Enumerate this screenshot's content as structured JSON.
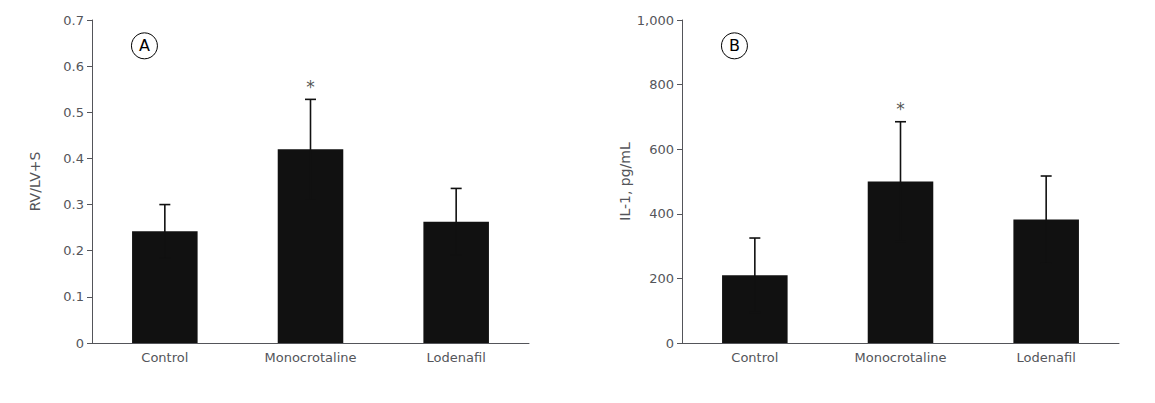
{
  "chart_data": [
    {
      "type": "bar",
      "categories": [
        "Control",
        "Monocrotaline",
        "Lodenafil"
      ],
      "values": [
        0.242,
        0.42,
        0.263
      ],
      "errors": [
        0.058,
        0.108,
        0.072
      ],
      "ylabel": "RV/LV+S",
      "ylim": [
        0,
        0.7
      ],
      "yticks": [
        0,
        0.1,
        0.2,
        0.3,
        0.4,
        0.5,
        0.6,
        0.7
      ],
      "panel_label": "A",
      "annotations": [
        {
          "text": "*",
          "category": "Monocrotaline"
        }
      ],
      "color": "#111111",
      "grid": false
    },
    {
      "type": "bar",
      "categories": [
        "Control",
        "Monocrotaline",
        "Lodenafil"
      ],
      "values": [
        210,
        500,
        382
      ],
      "errors": [
        115,
        185,
        135
      ],
      "ylabel": "IL-1, pg/mL",
      "ylim": [
        0,
        1000
      ],
      "yticks": [
        0,
        200,
        400,
        600,
        800,
        1000
      ],
      "panel_label": "B",
      "annotations": [
        {
          "text": "*",
          "category": "Monocrotaline"
        }
      ],
      "color": "#111111",
      "grid": false
    }
  ]
}
